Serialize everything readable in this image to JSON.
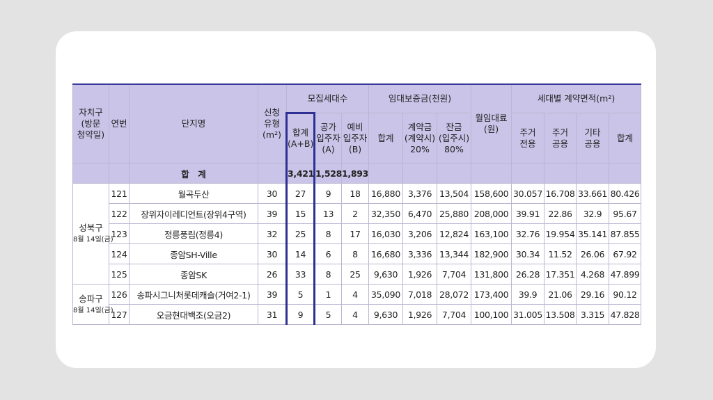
{
  "headers": {
    "district": "자치구\n(방문\n청약일)",
    "serial": "연번",
    "complex": "단지명",
    "apply_type": "신청\n유형\n(m²)",
    "recruit_group": "모집세대수",
    "recruit_total": "합계\n(A+B)",
    "recruit_vacant": "공가\n입주자\n(A)",
    "recruit_reserve": "예비\n입주자\n(B)",
    "deposit_group": "임대보증금(천원)",
    "deposit_total": "합계",
    "deposit_contract": "계약금\n(계약시)\n20%",
    "deposit_balance": "잔금\n(입주시)\n80%",
    "monthly_rent": "월임대료\n(원)",
    "area_group": "세대별 계약면적(m²)",
    "area_private": "주거\n전용",
    "area_common": "주거\n공용",
    "area_other": "기타\n공용",
    "area_total": "합계"
  },
  "total_row": {
    "label": "합　계",
    "recruit_total": "3,421",
    "recruit_vacant": "1,528",
    "recruit_reserve": "1,893"
  },
  "districts": [
    {
      "name": "성북구",
      "date": "8월 14일(금)"
    },
    {
      "name": "송파구",
      "date": "8월 14일(금)"
    }
  ],
  "rows": [
    {
      "no": "121",
      "name": "월곡두산",
      "type": "30",
      "total": "27",
      "vacant": "9",
      "reserve": "18",
      "dep_total": "16,880",
      "dep_contract": "3,376",
      "dep_balance": "13,504",
      "rent": "158,600",
      "a_private": "30.057",
      "a_common": "16.708",
      "a_other": "33.661",
      "a_total": "80.426"
    },
    {
      "no": "122",
      "name": "장위자이레디언트(장위4구역)",
      "type": "39",
      "total": "15",
      "vacant": "13",
      "reserve": "2",
      "dep_total": "32,350",
      "dep_contract": "6,470",
      "dep_balance": "25,880",
      "rent": "208,000",
      "a_private": "39.91",
      "a_common": "22.86",
      "a_other": "32.9",
      "a_total": "95.67"
    },
    {
      "no": "123",
      "name": "정릉풍림(정릉4)",
      "type": "32",
      "total": "25",
      "vacant": "8",
      "reserve": "17",
      "dep_total": "16,030",
      "dep_contract": "3,206",
      "dep_balance": "12,824",
      "rent": "163,100",
      "a_private": "32.76",
      "a_common": "19.954",
      "a_other": "35.141",
      "a_total": "87.855"
    },
    {
      "no": "124",
      "name": "종암SH-Ville",
      "type": "30",
      "total": "14",
      "vacant": "6",
      "reserve": "8",
      "dep_total": "16,680",
      "dep_contract": "3,336",
      "dep_balance": "13,344",
      "rent": "182,900",
      "a_private": "30.34",
      "a_common": "11.52",
      "a_other": "26.06",
      "a_total": "67.92"
    },
    {
      "no": "125",
      "name": "종암SK",
      "type": "26",
      "total": "33",
      "vacant": "8",
      "reserve": "25",
      "dep_total": "9,630",
      "dep_contract": "1,926",
      "dep_balance": "7,704",
      "rent": "131,800",
      "a_private": "26.28",
      "a_common": "17.351",
      "a_other": "4.268",
      "a_total": "47.899"
    },
    {
      "no": "126",
      "name": "송파시그니처롯데캐슬(거여2-1)",
      "type": "39",
      "total": "5",
      "vacant": "1",
      "reserve": "4",
      "dep_total": "35,090",
      "dep_contract": "7,018",
      "dep_balance": "28,072",
      "rent": "173,400",
      "a_private": "39.9",
      "a_common": "21.06",
      "a_other": "29.16",
      "a_total": "90.12"
    },
    {
      "no": "127",
      "name": "오금현대백조(오금2)",
      "type": "31",
      "total": "9",
      "vacant": "5",
      "reserve": "4",
      "dep_total": "9,630",
      "dep_contract": "1,926",
      "dep_balance": "7,704",
      "rent": "100,100",
      "a_private": "31.005",
      "a_common": "13.508",
      "a_other": "3.315",
      "a_total": "47.828"
    }
  ]
}
